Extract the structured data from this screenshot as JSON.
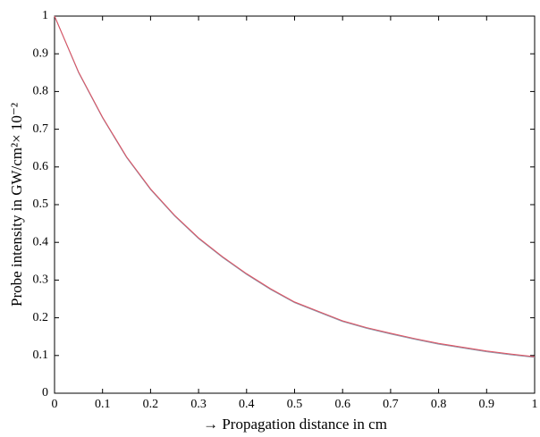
{
  "chart_data": {
    "type": "line",
    "xlabel": "→ Propagation distance in cm",
    "ylabel": "Probe intensity in GW/cm²× 10⁻²",
    "x": [
      0,
      0.05,
      0.1,
      0.15,
      0.2,
      0.25,
      0.3,
      0.35,
      0.4,
      0.45,
      0.5,
      0.55,
      0.6,
      0.65,
      0.7,
      0.75,
      0.8,
      0.85,
      0.9,
      0.95,
      1
    ],
    "series": [
      {
        "color": "#8c96a8",
        "values": [
          1,
          0.85,
          0.73,
          0.625,
          0.54,
          0.47,
          0.41,
          0.36,
          0.315,
          0.275,
          0.24,
          0.215,
          0.19,
          0.172,
          0.157,
          0.143,
          0.13,
          0.12,
          0.11,
          0.102,
          0.095
        ]
      },
      {
        "color": "#e05060",
        "values": [
          1,
          0.852,
          0.732,
          0.627,
          0.542,
          0.472,
          0.412,
          0.362,
          0.317,
          0.277,
          0.242,
          0.217,
          0.192,
          0.174,
          0.159,
          0.145,
          0.132,
          0.122,
          0.112,
          0.104,
          0.097
        ]
      }
    ],
    "xlim": [
      0,
      1
    ],
    "xticks": [
      0,
      0.1,
      0.2,
      0.3,
      0.4,
      0.5,
      0.6,
      0.7,
      0.8,
      0.9,
      1
    ],
    "ylim": [
      0,
      1
    ],
    "yticks": [
      0,
      0.1,
      0.2,
      0.3,
      0.4,
      0.5,
      0.6,
      0.7,
      0.8,
      0.9,
      1
    ]
  }
}
